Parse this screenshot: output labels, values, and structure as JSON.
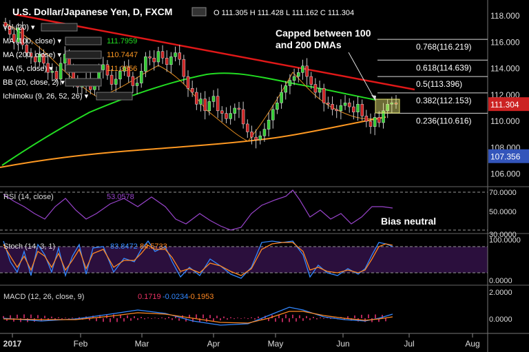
{
  "header": {
    "symbol": "U.S. Dollar/Japanese Yen, D, FXCM",
    "ohlc": "O 111.305  H 111.428  L 111.162  C 111.304"
  },
  "indicators": [
    {
      "label": "Vol (20)",
      "value": "",
      "color": "#ffffff"
    },
    {
      "label": "MA (100, close)",
      "value": "111.7959",
      "color": "#22dd22"
    },
    {
      "label": "MA (200, close)",
      "value": "110.7447",
      "color": "#ff9922"
    },
    {
      "label": "MA (5, close)",
      "value": "111.3856",
      "color": "#ff9922"
    },
    {
      "label": "BB (20, close, 2)",
      "value": "",
      "color": "#ffffff"
    },
    {
      "label": "Ichimoku (9, 26, 52, 26)",
      "value": "",
      "color": "#ffffff"
    }
  ],
  "annotations": {
    "capped": [
      "Capped between 100",
      "and 200 DMAs"
    ],
    "bias": "Bias neutral"
  },
  "fib_levels": [
    {
      "label": "0.768(116.219)",
      "price": 116.219
    },
    {
      "label": "0.618(114.639)",
      "price": 114.639
    },
    {
      "label": "0.5(113.396)",
      "price": 113.396
    },
    {
      "label": "0.382(112.153)",
      "price": 112.153
    },
    {
      "label": "0.236(110.616)",
      "price": 110.616
    }
  ],
  "price_tags": [
    {
      "label": "111.304",
      "value": 111.304,
      "color": "#cc2222"
    },
    {
      "label": "107.356",
      "value": 107.356,
      "color": "#3355bb"
    }
  ],
  "panels": {
    "rsi": {
      "label": "RSI (14, close)",
      "value": "53.0578",
      "ticks": [
        "70.0000",
        "50.0000",
        "30.0000"
      ]
    },
    "stoch": {
      "label": "Stoch (14, 3, 1)",
      "k": "83.8472",
      "d": "84.5733",
      "ticks": [
        "100.0000",
        "0.0000"
      ]
    },
    "macd": {
      "label": "MACD (12, 26, close, 9)",
      "v1": "0.1719",
      "v2": "-0.0234",
      "v3": "-0.1953",
      "ticks": [
        "2.0000",
        "0.0000"
      ]
    }
  },
  "chart_data": {
    "type": "candlestick",
    "x_labels": [
      "2017",
      "Feb",
      "Mar",
      "Apr",
      "May",
      "Jun",
      "Jul",
      "Aug"
    ],
    "y_ticks": [
      "118.000",
      "116.000",
      "114.000",
      "112.000",
      "110.000",
      "108.000",
      "106.000"
    ],
    "ylim": [
      105.2,
      119.2
    ],
    "closes": [
      117.2,
      116.6,
      116.0,
      117.1,
      115.8,
      115.2,
      114.9,
      114.5,
      115.1,
      114.4,
      113.7,
      113.8,
      113.2,
      114.4,
      115.1,
      113.9,
      112.9,
      112.6,
      112.8,
      113.2,
      112.4,
      112.9,
      113.9,
      114.3,
      113.5,
      112.8,
      113.2,
      113.8,
      114.1,
      113.4,
      112.7,
      112.9,
      113.8,
      114.9,
      114.8,
      114.5,
      115.3,
      114.8,
      114.3,
      114.9,
      115.2,
      114.7,
      113.4,
      112.5,
      112.2,
      111.3,
      111.7,
      110.8,
      111.5,
      111.9,
      110.8,
      110.6,
      110.2,
      110.6,
      111.0,
      110.9,
      109.8,
      109.2,
      108.8,
      108.6,
      108.9,
      109.4,
      110.1,
      110.9,
      111.4,
      112.2,
      112.7,
      113.1,
      113.4,
      113.7,
      114.2,
      113.4,
      112.8,
      112.2,
      112.5,
      111.4,
      111.3,
      110.9,
      110.8,
      111.2,
      111.4,
      111.1,
      110.7,
      111.3,
      110.4,
      110.0,
      109.6,
      110.3,
      109.9,
      110.8,
      111.3,
      111.4,
      111.3
    ]
  }
}
